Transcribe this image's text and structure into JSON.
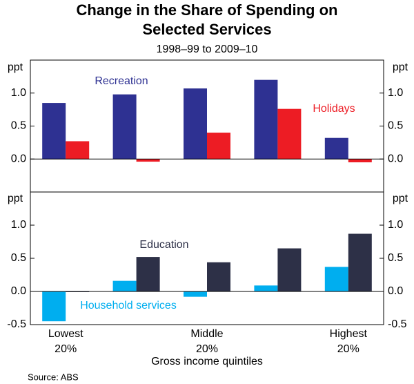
{
  "chart_data": [
    {
      "type": "bar",
      "title": [
        "Change in the Share of Spending on",
        "Selected Services"
      ],
      "subtitle": "1998–99 to 2009–10",
      "y_unit": "ppt",
      "series": [
        {
          "name": "Recreation",
          "color": "#2e3192",
          "values": [
            0.85,
            0.98,
            1.07,
            1.2,
            0.32
          ]
        },
        {
          "name": "Holidays",
          "color": "#ed1c24",
          "values": [
            0.27,
            -0.04,
            0.4,
            0.76,
            -0.05
          ]
        }
      ],
      "ylim": [
        -0.5,
        1.5
      ],
      "yticks": [
        {
          "value": 0,
          "label": "0.0"
        },
        {
          "value": 0.5,
          "label": "0.5"
        },
        {
          "value": 1,
          "label": "1.0"
        }
      ]
    },
    {
      "type": "bar",
      "y_unit": "ppt",
      "categories": [
        [
          "Lowest",
          "20%"
        ],
        null,
        [
          "Middle",
          "20%"
        ],
        null,
        [
          "Highest",
          "20%"
        ]
      ],
      "x_label": "Gross income quintiles",
      "source": "Source: ABS",
      "series": [
        {
          "name": "Household services",
          "color": "#00aeef",
          "values": [
            -0.45,
            0.16,
            -0.08,
            0.09,
            0.37
          ]
        },
        {
          "name": "Education",
          "color": "#2d3047",
          "values": [
            -0.01,
            0.52,
            0.44,
            0.65,
            0.87
          ]
        }
      ],
      "ylim": [
        -0.5,
        1.5
      ],
      "yticks": [
        {
          "value": -0.5,
          "label": "-0.5"
        },
        {
          "value": 0,
          "label": "0.0"
        },
        {
          "value": 0.5,
          "label": "0.5"
        },
        {
          "value": 1,
          "label": "1.0"
        }
      ]
    }
  ]
}
